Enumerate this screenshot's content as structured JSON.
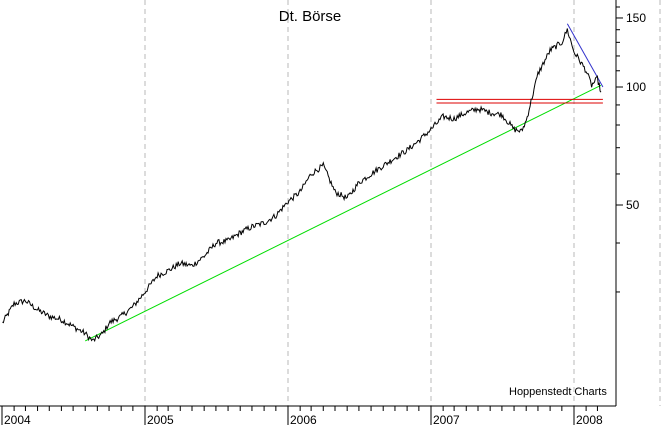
{
  "chart_data": {
    "type": "line",
    "title": "Dt. Börse",
    "source": "Hoppenstedt Charts",
    "x_tick_labels": [
      "2004",
      "2005",
      "2006",
      "2007",
      "2008"
    ],
    "y_ticks": [
      50,
      100,
      150
    ],
    "y_scale": "log",
    "y_axis_position": "right",
    "xlim": [
      "2004-01-01",
      "2008-03-15"
    ],
    "ylim": [
      21,
      170
    ],
    "grid": "vertical dashed at year boundaries",
    "series": [
      {
        "values_x": [
          "2004-01-02",
          "2004-02-01",
          "2004-03-01",
          "2004-04-01",
          "2004-05-01",
          "2004-06-01",
          "2004-07-01",
          "2004-08-01",
          "2004-08-20",
          "2004-09-15",
          "2004-10-01",
          "2004-11-01",
          "2004-12-01",
          "2005-01-01",
          "2005-02-01",
          "2005-03-01",
          "2005-04-01",
          "2005-05-01",
          "2005-06-01",
          "2005-07-01",
          "2005-08-01",
          "2005-09-01",
          "2005-10-01",
          "2005-11-01",
          "2005-12-01",
          "2006-01-01",
          "2006-02-01",
          "2006-03-01",
          "2006-04-01",
          "2006-05-01",
          "2006-06-01",
          "2006-07-01",
          "2006-08-01",
          "2006-09-01",
          "2006-10-01",
          "2006-11-01",
          "2006-12-01",
          "2007-01-01",
          "2007-02-01",
          "2007-03-01",
          "2007-04-01",
          "2007-05-01",
          "2007-06-01",
          "2007-07-01",
          "2007-08-01",
          "2007-08-20",
          "2007-09-01",
          "2007-10-01",
          "2007-11-01",
          "2007-12-01",
          "2007-12-15",
          "2008-01-01",
          "2008-01-15",
          "2008-02-01",
          "2008-02-15",
          "2008-03-01",
          "2008-03-10"
        ],
        "values": [
          25,
          28,
          28.5,
          27,
          26,
          25.5,
          24.5,
          23.5,
          22.5,
          23.5,
          25,
          26,
          27.5,
          30,
          33,
          34,
          35.5,
          35,
          37,
          40,
          40.5,
          42.5,
          44,
          45,
          47,
          51,
          54,
          60,
          63,
          54,
          52,
          57,
          60,
          63,
          66,
          69,
          73,
          78,
          84,
          83,
          86,
          88,
          86,
          85,
          78,
          77,
          82,
          108,
          124,
          130,
          140,
          123,
          117,
          110,
          101,
          105,
          97
        ],
        "color": "#000000"
      }
    ],
    "trendlines": [
      {
        "name": "support",
        "color": "#00dd00",
        "from": {
          "x": "2004-08-01",
          "y": 22.5
        },
        "to": {
          "x": "2008-03-10",
          "y": 101
        }
      },
      {
        "name": "resistance",
        "color": "#3333cc",
        "from": {
          "x": "2007-12-15",
          "y": 145
        },
        "to": {
          "x": "2008-03-15",
          "y": 100
        }
      },
      {
        "name": "horizontal-upper",
        "color": "#dd0000",
        "from": {
          "x": "2007-01-15",
          "y": 93
        },
        "to": {
          "x": "2008-03-15",
          "y": 93
        }
      },
      {
        "name": "horizontal-lower",
        "color": "#dd0000",
        "from": {
          "x": "2007-01-15",
          "y": 91
        },
        "to": {
          "x": "2008-03-15",
          "y": 91
        }
      }
    ]
  }
}
